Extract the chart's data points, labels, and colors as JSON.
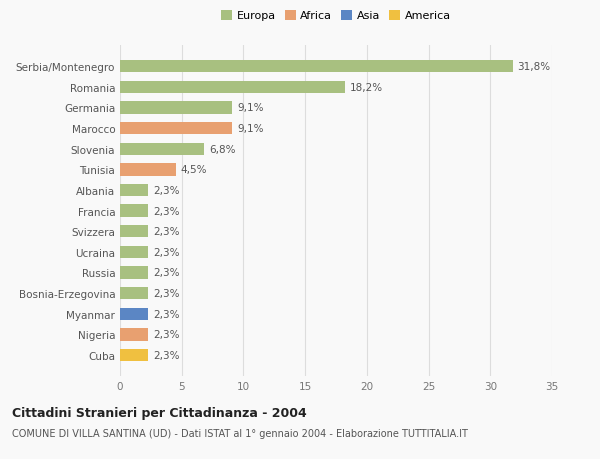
{
  "categories": [
    "Cuba",
    "Nigeria",
    "Myanmar",
    "Bosnia-Erzegovina",
    "Russia",
    "Ucraina",
    "Svizzera",
    "Francia",
    "Albania",
    "Tunisia",
    "Slovenia",
    "Marocco",
    "Germania",
    "Romania",
    "Serbia/Montenegro"
  ],
  "values": [
    2.3,
    2.3,
    2.3,
    2.3,
    2.3,
    2.3,
    2.3,
    2.3,
    2.3,
    4.5,
    6.8,
    9.1,
    9.1,
    18.2,
    31.8
  ],
  "labels": [
    "2,3%",
    "2,3%",
    "2,3%",
    "2,3%",
    "2,3%",
    "2,3%",
    "2,3%",
    "2,3%",
    "2,3%",
    "4,5%",
    "6,8%",
    "9,1%",
    "9,1%",
    "18,2%",
    "31,8%"
  ],
  "colors": [
    "#f0c040",
    "#e8a070",
    "#5b86c4",
    "#a8c080",
    "#a8c080",
    "#a8c080",
    "#a8c080",
    "#a8c080",
    "#a8c080",
    "#e8a070",
    "#a8c080",
    "#e8a070",
    "#a8c080",
    "#a8c080",
    "#a8c080"
  ],
  "legend_labels": [
    "Europa",
    "Africa",
    "Asia",
    "America"
  ],
  "legend_colors": [
    "#a8c080",
    "#e8a070",
    "#5b86c4",
    "#f0c040"
  ],
  "xlim": [
    0,
    35
  ],
  "xticks": [
    0,
    5,
    10,
    15,
    20,
    25,
    30,
    35
  ],
  "title": "Cittadini Stranieri per Cittadinanza - 2004",
  "subtitle": "COMUNE DI VILLA SANTINA (UD) - Dati ISTAT al 1° gennaio 2004 - Elaborazione TUTTITALIA.IT",
  "bg_color": "#f9f9f9",
  "grid_color": "#dddddd",
  "bar_height": 0.6,
  "label_fontsize": 7.5,
  "tick_fontsize": 7.5,
  "title_fontsize": 9,
  "subtitle_fontsize": 7
}
